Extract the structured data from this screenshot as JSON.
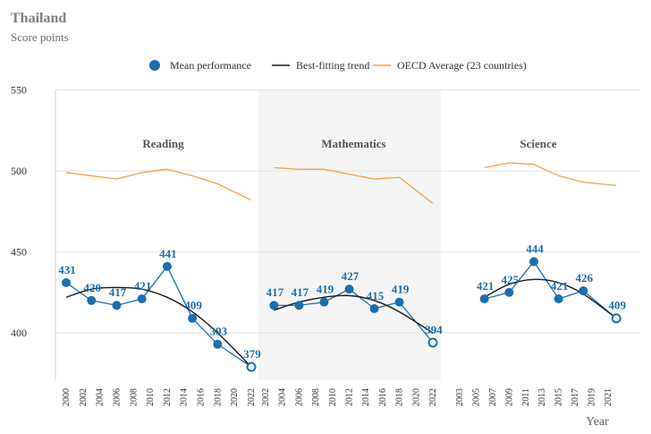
{
  "header": {
    "title": "Thailand",
    "subtitle": "Score points"
  },
  "legend": {
    "mean": "Mean performance",
    "trend": "Best-fitting trend",
    "oecd": "OECD Average (23 countries)"
  },
  "colors": {
    "mean": "#1a6faf",
    "trend": "#1a1a1a",
    "oecd": "#f5a04f",
    "shade": "#f5f5f5",
    "grid": "#e3e3e3"
  },
  "chart_data": {
    "type": "line",
    "title": "Thailand",
    "ylabel": "Score points",
    "xlabel": "Year",
    "ylim": [
      380,
      550
    ],
    "yticks": [
      400,
      450,
      500,
      550
    ],
    "grid": true,
    "legend_position": "top",
    "panels": [
      {
        "name": "Reading",
        "shaded": false,
        "x_ticks": [
          "2000",
          "2002",
          "2004",
          "2006",
          "2008",
          "2010",
          "2012",
          "2014",
          "2016",
          "2018",
          "2020",
          "2022"
        ],
        "series": [
          {
            "name": "Mean performance",
            "points": [
              {
                "x": 2000,
                "y": 431,
                "label": "431"
              },
              {
                "x": 2003,
                "y": 420,
                "label": "420"
              },
              {
                "x": 2006,
                "y": 417,
                "label": "417"
              },
              {
                "x": 2009,
                "y": 421,
                "label": "421"
              },
              {
                "x": 2012,
                "y": 441,
                "label": "441"
              },
              {
                "x": 2015,
                "y": 409,
                "label": "409"
              },
              {
                "x": 2018,
                "y": 393,
                "label": "393"
              },
              {
                "x": 2022,
                "y": 379,
                "label": "379",
                "hollow": true
              }
            ]
          },
          {
            "name": "Best-fitting trend",
            "points": [
              {
                "x": 2000,
                "y": 422
              },
              {
                "x": 2003,
                "y": 427
              },
              {
                "x": 2006,
                "y": 428
              },
              {
                "x": 2009,
                "y": 427
              },
              {
                "x": 2012,
                "y": 422
              },
              {
                "x": 2015,
                "y": 413
              },
              {
                "x": 2018,
                "y": 400
              },
              {
                "x": 2022,
                "y": 379
              }
            ]
          },
          {
            "name": "OECD Average (23 countries)",
            "points": [
              {
                "x": 2000,
                "y": 499
              },
              {
                "x": 2003,
                "y": 497
              },
              {
                "x": 2006,
                "y": 495
              },
              {
                "x": 2009,
                "y": 499
              },
              {
                "x": 2012,
                "y": 501
              },
              {
                "x": 2015,
                "y": 497
              },
              {
                "x": 2018,
                "y": 492
              },
              {
                "x": 2022,
                "y": 482
              }
            ]
          }
        ]
      },
      {
        "name": "Mathematics",
        "shaded": true,
        "x_ticks": [
          "2002",
          "2004",
          "2006",
          "2008",
          "2010",
          "2012",
          "2014",
          "2016",
          "2018",
          "2020",
          "2022"
        ],
        "series": [
          {
            "name": "Mean performance",
            "points": [
              {
                "x": 2003,
                "y": 417,
                "label": "417"
              },
              {
                "x": 2006,
                "y": 417,
                "label": "417"
              },
              {
                "x": 2009,
                "y": 419,
                "label": "419"
              },
              {
                "x": 2012,
                "y": 427,
                "label": "427"
              },
              {
                "x": 2015,
                "y": 415,
                "label": "415"
              },
              {
                "x": 2018,
                "y": 419,
                "label": "419"
              },
              {
                "x": 2022,
                "y": 394,
                "label": "394",
                "hollow": true
              }
            ]
          },
          {
            "name": "Best-fitting trend",
            "points": [
              {
                "x": 2003,
                "y": 414
              },
              {
                "x": 2006,
                "y": 419
              },
              {
                "x": 2009,
                "y": 422
              },
              {
                "x": 2012,
                "y": 423
              },
              {
                "x": 2015,
                "y": 420
              },
              {
                "x": 2018,
                "y": 413
              },
              {
                "x": 2022,
                "y": 400
              }
            ]
          },
          {
            "name": "OECD Average (23 countries)",
            "points": [
              {
                "x": 2003,
                "y": 502
              },
              {
                "x": 2006,
                "y": 501
              },
              {
                "x": 2009,
                "y": 501
              },
              {
                "x": 2012,
                "y": 498
              },
              {
                "x": 2015,
                "y": 495
              },
              {
                "x": 2018,
                "y": 496
              },
              {
                "x": 2022,
                "y": 480
              }
            ]
          }
        ]
      },
      {
        "name": "Science",
        "shaded": false,
        "x_ticks": [
          "2003",
          "2005",
          "2007",
          "2009",
          "2011",
          "2013",
          "2015",
          "2017",
          "2019",
          "2021"
        ],
        "series": [
          {
            "name": "Mean performance",
            "points": [
              {
                "x": 2006,
                "y": 421,
                "label": "421"
              },
              {
                "x": 2009,
                "y": 425,
                "label": "425"
              },
              {
                "x": 2012,
                "y": 444,
                "label": "444"
              },
              {
                "x": 2015,
                "y": 421,
                "label": "421"
              },
              {
                "x": 2018,
                "y": 426,
                "label": "426"
              },
              {
                "x": 2022,
                "y": 409,
                "label": "409",
                "hollow": true
              }
            ]
          },
          {
            "name": "Best-fitting trend",
            "points": [
              {
                "x": 2006,
                "y": 422
              },
              {
                "x": 2009,
                "y": 430
              },
              {
                "x": 2012,
                "y": 433
              },
              {
                "x": 2015,
                "y": 431
              },
              {
                "x": 2018,
                "y": 424
              },
              {
                "x": 2022,
                "y": 409
              }
            ]
          },
          {
            "name": "OECD Average (23 countries)",
            "points": [
              {
                "x": 2006,
                "y": 502
              },
              {
                "x": 2009,
                "y": 505
              },
              {
                "x": 2012,
                "y": 504
              },
              {
                "x": 2015,
                "y": 497
              },
              {
                "x": 2018,
                "y": 493
              },
              {
                "x": 2022,
                "y": 491
              }
            ]
          }
        ]
      }
    ]
  }
}
